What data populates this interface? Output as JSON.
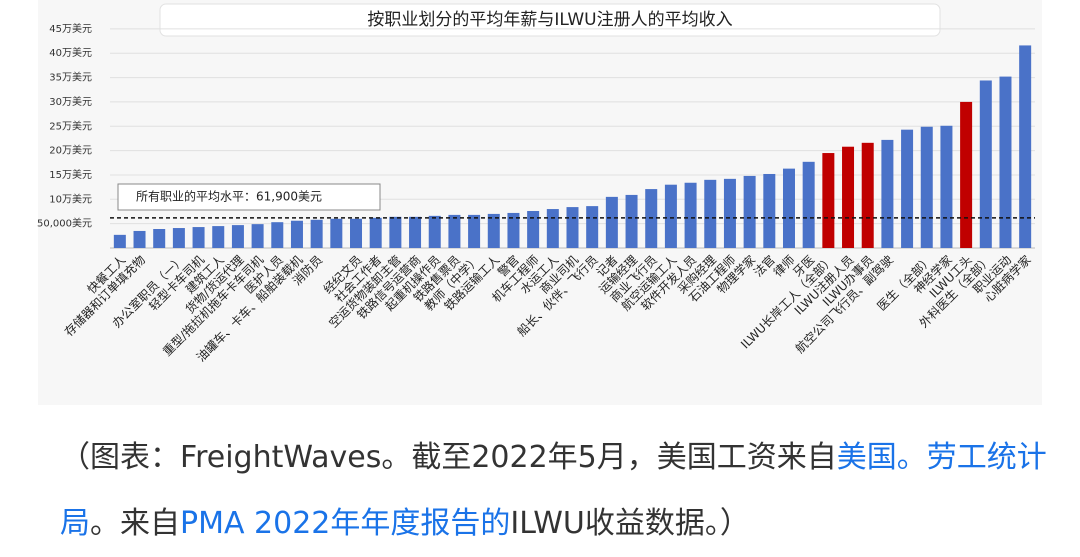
{
  "chart_data": {
    "type": "bar",
    "title": "按职业划分的平均年薪与ILWU注册人的平均收入",
    "categories": [
      "快餐工人",
      "存储器和订单填充物",
      null,
      "办公室职员（一）",
      "轻型卡车司机",
      "建筑工人",
      "货物/货运代理",
      "重型/拖拉机拖车卡车司机",
      "医护人员",
      "油罐车、卡车、船舶装载机",
      "消防员",
      null,
      "经纪文员",
      "社会工作者",
      "空运货物装卸主管",
      "铁路信号运营商",
      "起重机操作员",
      "铁路售票员",
      "教师（中学）",
      "铁路运输工人",
      "警官",
      "机车工程师",
      "水运工人",
      "商业司机",
      "船长、伙伴、飞行员",
      "记者",
      "运输经理",
      "商业飞行员",
      "航空运输工人",
      "软件开发人员",
      "采购经理",
      "石油工程师",
      "物理学家",
      "法官",
      "律师",
      "牙医",
      "ILWU长岸工人（全部）",
      "ILWU注册人员",
      "ILWU办事员",
      "航空公司飞行员、副驾驶",
      null,
      "医生（全部）",
      "神经学家",
      "ILWU工头",
      "外科医生（全部）",
      "职业运动",
      "心脏病学家"
    ],
    "values": [
      27000,
      35000,
      39000,
      41000,
      43000,
      45000,
      47000,
      49000,
      53000,
      56000,
      58000,
      60000,
      60000,
      62000,
      64000,
      64000,
      66000,
      68000,
      68000,
      70000,
      72000,
      76000,
      80000,
      84000,
      86000,
      105000,
      109000,
      121000,
      130000,
      134000,
      140000,
      142000,
      148000,
      152000,
      163000,
      177000,
      195000,
      208000,
      216000,
      222000,
      243000,
      249000,
      251000,
      300000,
      344000,
      352000,
      416000
    ],
    "colors": [
      "#4a72c8",
      "#4a72c8",
      "#4a72c8",
      "#4a72c8",
      "#4a72c8",
      "#4a72c8",
      "#4a72c8",
      "#4a72c8",
      "#4a72c8",
      "#4a72c8",
      "#4a72c8",
      "#4a72c8",
      "#4a72c8",
      "#4a72c8",
      "#4a72c8",
      "#4a72c8",
      "#4a72c8",
      "#4a72c8",
      "#4a72c8",
      "#4a72c8",
      "#4a72c8",
      "#4a72c8",
      "#4a72c8",
      "#4a72c8",
      "#4a72c8",
      "#4a72c8",
      "#4a72c8",
      "#4a72c8",
      "#4a72c8",
      "#4a72c8",
      "#4a72c8",
      "#4a72c8",
      "#4a72c8",
      "#4a72c8",
      "#4a72c8",
      "#4a72c8",
      "#c00000",
      "#c00000",
      "#c00000",
      "#4a72c8",
      "#4a72c8",
      "#4a72c8",
      "#4a72c8",
      "#c00000",
      "#4a72c8",
      "#4a72c8",
      "#4a72c8"
    ],
    "ylim": [
      0,
      460000
    ],
    "yticks": [
      {
        "value": 50000,
        "label": "50,000美元"
      },
      {
        "value": 100000,
        "label": "10万美元"
      },
      {
        "value": 150000,
        "label": "15万美元"
      },
      {
        "value": 200000,
        "label": "20万美元"
      },
      {
        "value": 250000,
        "label": "25万美元"
      },
      {
        "value": 300000,
        "label": "30万美元"
      },
      {
        "value": 350000,
        "label": "35万美元"
      },
      {
        "value": 400000,
        "label": "40万美元"
      },
      {
        "value": 450000,
        "label": "45万美元"
      }
    ],
    "grid": true,
    "average_line": 61900,
    "average_label": "所有职业的平均水平：61,900美元"
  },
  "caption": [
    {
      "text": "（图表：FreightWaves。截至2022年5月，美国工资来自",
      "link": false
    },
    {
      "text": "美国。劳工统计局",
      "link": true
    },
    {
      "text": "。来自",
      "link": false
    },
    {
      "text": "PMA 2022年年度报告的",
      "link": true
    },
    {
      "text": "ILWU收益数据。）",
      "link": false
    }
  ]
}
